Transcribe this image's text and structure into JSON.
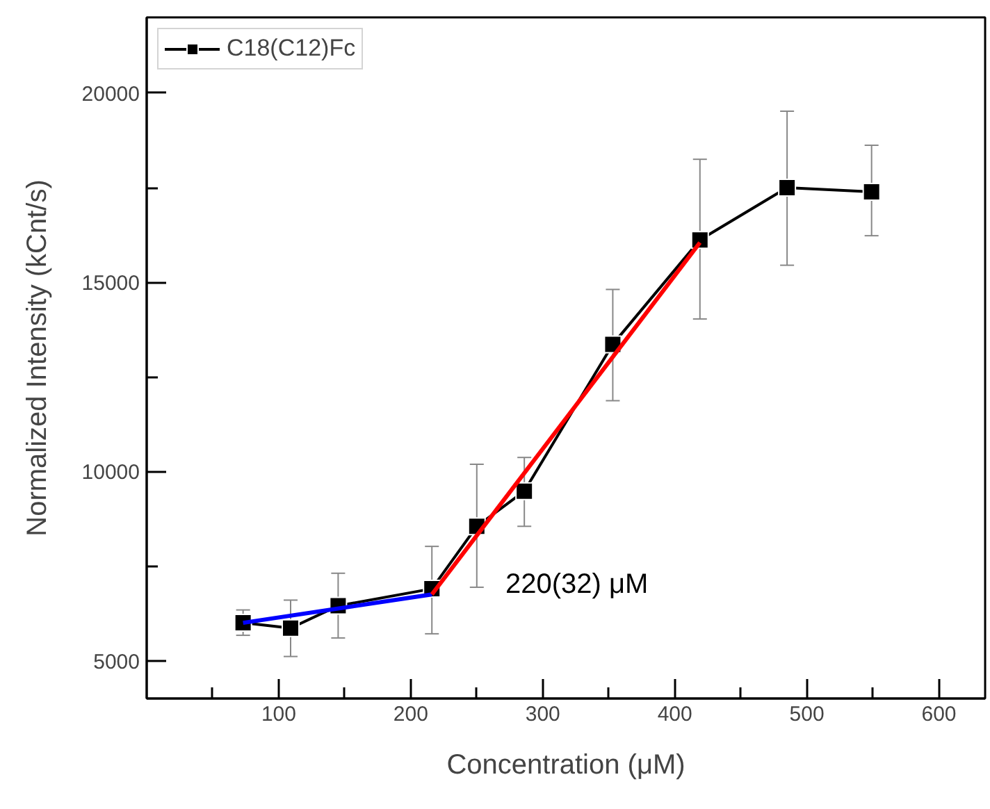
{
  "chart_data": {
    "type": "line",
    "xlabel": "Concentration (μM)",
    "ylabel": "Normalized Intensity (kCnt/s)",
    "xlim": [
      0,
      635
    ],
    "ylim": [
      4000,
      22000
    ],
    "xticks": [
      {
        "value": 50,
        "label": null
      },
      100,
      {
        "value": 150,
        "label": null
      },
      200,
      {
        "value": 250,
        "label": null
      },
      300,
      {
        "value": 350,
        "label": null
      },
      400,
      {
        "value": 450,
        "label": null
      },
      500,
      {
        "value": 550,
        "label": null
      },
      600
    ],
    "yticks": [
      5000,
      {
        "value": 7500,
        "label": null
      },
      10000,
      {
        "value": 12500,
        "label": null
      },
      15000,
      {
        "value": 17500,
        "label": null
      },
      20000
    ],
    "grid": false,
    "legend": "top left",
    "marker": "square",
    "line_style": "solid",
    "series": [
      {
        "name": "C18(C12)Fc",
        "color": "#000000",
        "x": [
          73,
          109,
          145,
          216,
          250,
          286,
          353,
          419,
          485,
          549
        ],
        "values": [
          6000,
          5860,
          6450,
          6900,
          8550,
          9480,
          13360,
          16120,
          17500,
          17390
        ],
        "errors": [
          [
            5670,
            6340
          ],
          [
            5110,
            6600
          ],
          [
            5600,
            7310
          ],
          [
            5710,
            8020
          ],
          [
            6940,
            10190
          ],
          [
            8550,
            10370
          ],
          [
            11870,
            14810
          ],
          [
            14030,
            18250
          ],
          [
            15450,
            19520
          ],
          [
            16230,
            18620
          ]
        ]
      },
      {
        "type": "line",
        "color": "#0000ff",
        "x": [
          73,
          216
        ],
        "values": [
          6000,
          6750
        ],
        "marker": "none"
      },
      {
        "type": "line",
        "color": "#ff0000",
        "x": [
          216,
          419
        ],
        "values": [
          6750,
          16050
        ],
        "marker": "none"
      }
    ],
    "annotations": [
      "220(32) μM"
    ]
  }
}
